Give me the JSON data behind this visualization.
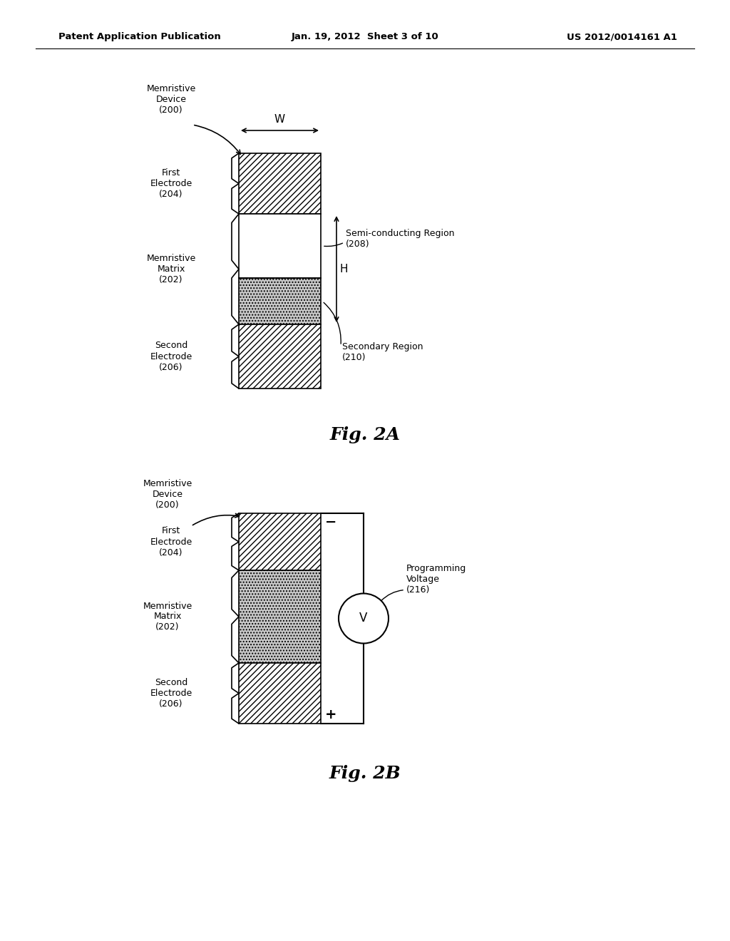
{
  "header_left": "Patent Application Publication",
  "header_center": "Jan. 19, 2012  Sheet 3 of 10",
  "header_right": "US 2012/0014161 A1",
  "fig2a_title": "Fig. 2A",
  "fig2b_title": "Fig. 2B",
  "bg_color": "#ffffff"
}
